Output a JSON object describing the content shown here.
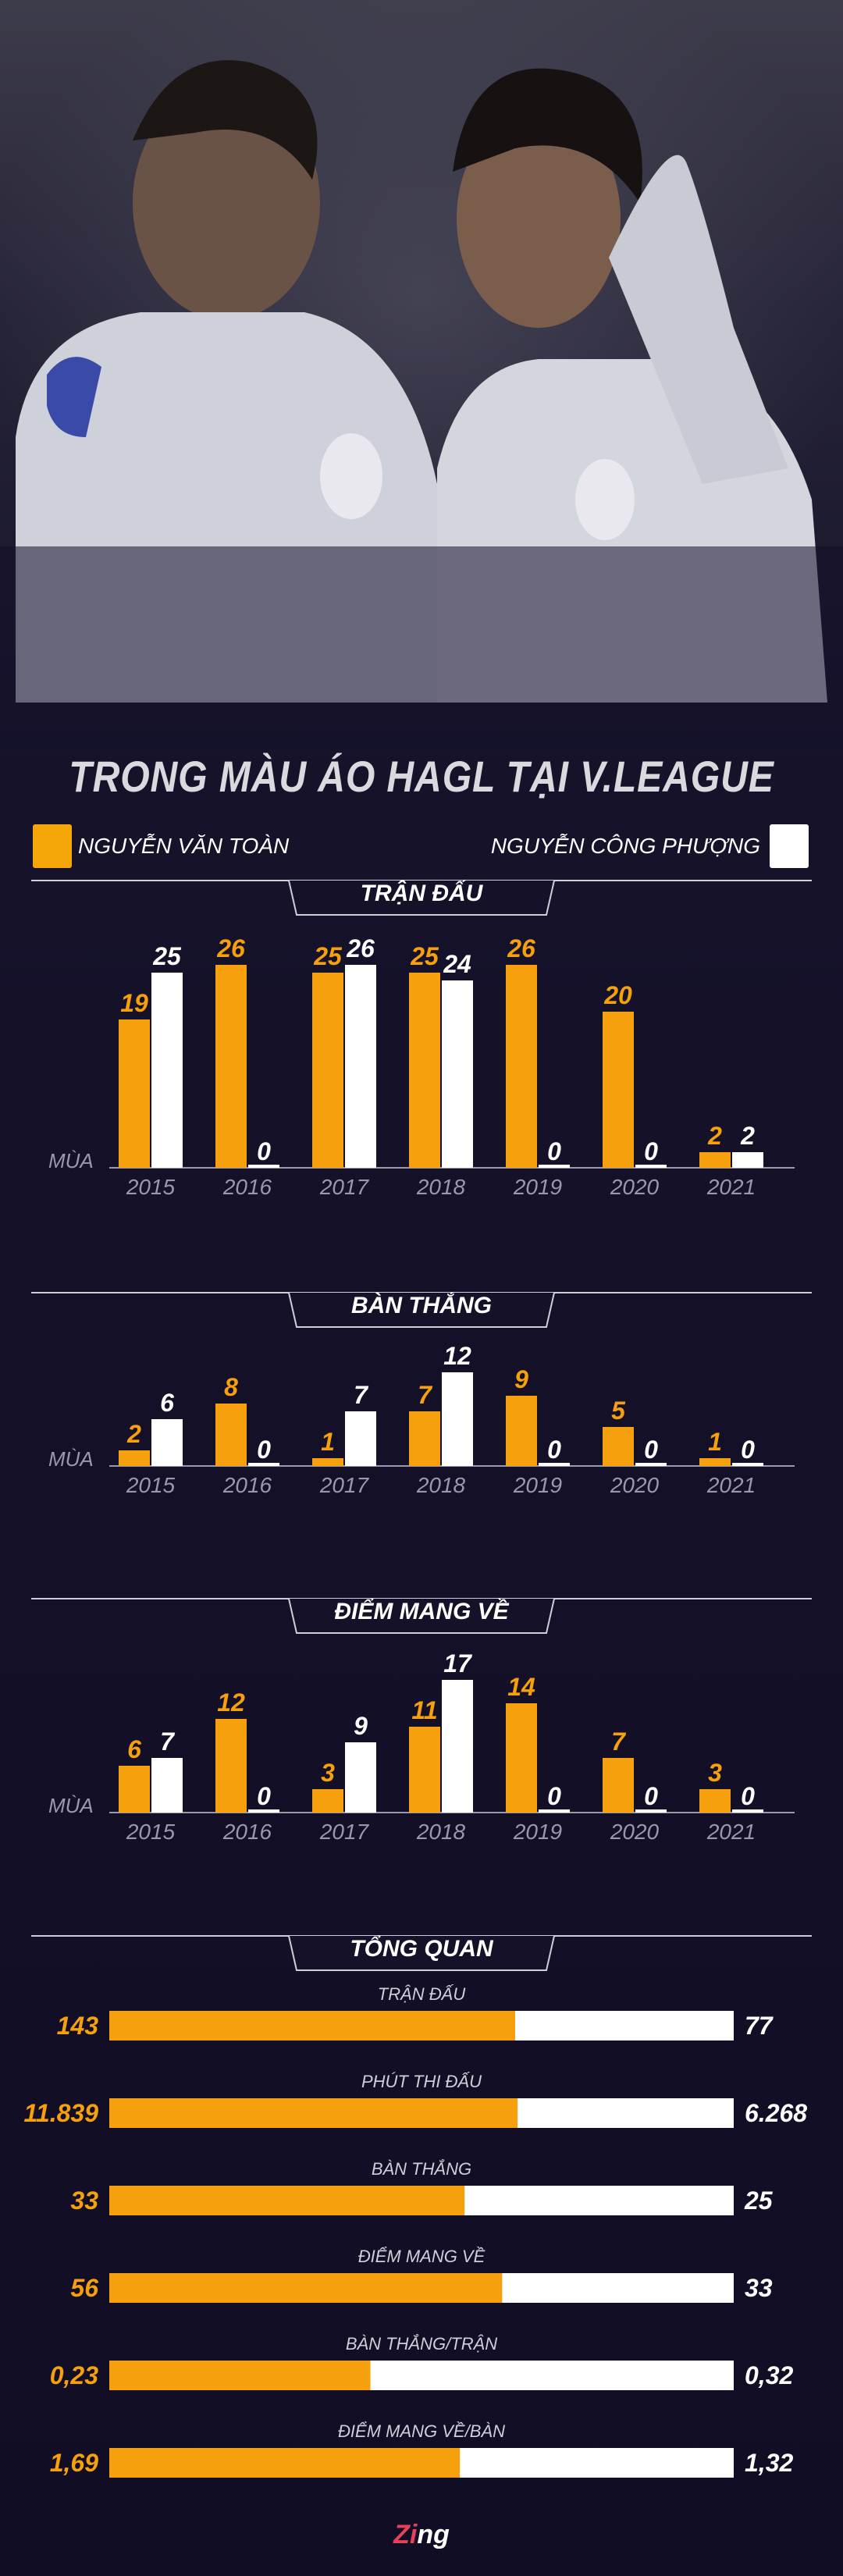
{
  "title": "TRONG MÀU ÁO HAGL TẠI V.LEAGUE",
  "players": {
    "left": {
      "name": "NGUYỄN VĂN TOÀN",
      "color": "#f5a00c"
    },
    "right": {
      "name": "NGUYỄN CÔNG PHƯỢNG",
      "color": "#ffffff"
    }
  },
  "axis_label": "MÙA",
  "chart_data": [
    {
      "type": "bar",
      "title": "TRẬN ĐẤU",
      "categories": [
        "2015",
        "2016",
        "2017",
        "2018",
        "2019",
        "2020",
        "2021"
      ],
      "series": [
        {
          "name": "NGUYỄN VĂN TOÀN",
          "values": [
            19,
            26,
            25,
            25,
            26,
            20,
            2
          ]
        },
        {
          "name": "NGUYỄN CÔNG PHƯỢNG",
          "values": [
            25,
            0,
            26,
            24,
            0,
            0,
            2
          ]
        }
      ],
      "ylim": [
        0,
        26
      ]
    },
    {
      "type": "bar",
      "title": "BÀN THẮNG",
      "categories": [
        "2015",
        "2016",
        "2017",
        "2018",
        "2019",
        "2020",
        "2021"
      ],
      "series": [
        {
          "name": "NGUYỄN VĂN TOÀN",
          "values": [
            2,
            8,
            1,
            7,
            9,
            5,
            1
          ]
        },
        {
          "name": "NGUYỄN CÔNG PHƯỢNG",
          "values": [
            6,
            0,
            7,
            12,
            0,
            0,
            0
          ]
        }
      ],
      "ylim": [
        0,
        12
      ]
    },
    {
      "type": "bar",
      "title": "ĐIỂM MANG VỀ",
      "categories": [
        "2015",
        "2016",
        "2017",
        "2018",
        "2019",
        "2020",
        "2021"
      ],
      "series": [
        {
          "name": "NGUYỄN VĂN TOÀN",
          "values": [
            6,
            12,
            3,
            11,
            14,
            7,
            3
          ]
        },
        {
          "name": "NGUYỄN CÔNG PHƯỢNG",
          "values": [
            7,
            0,
            9,
            17,
            0,
            0,
            0
          ]
        }
      ],
      "ylim": [
        0,
        17
      ]
    },
    {
      "type": "bar",
      "orientation": "horizontal-stacked",
      "title": "TỔNG QUAN",
      "rows": [
        {
          "label": "TRẬN ĐẤU",
          "left": 143,
          "right": 77,
          "left_text": "143",
          "right_text": "77"
        },
        {
          "label": "PHÚT THI ĐẤU",
          "left": 11839,
          "right": 6268,
          "left_text": "11.839",
          "right_text": "6.268"
        },
        {
          "label": "BÀN THẮNG",
          "left": 33,
          "right": 25,
          "left_text": "33",
          "right_text": "25"
        },
        {
          "label": "ĐIỂM MANG VỀ",
          "left": 56,
          "right": 33,
          "left_text": "56",
          "right_text": "33"
        },
        {
          "label": "BÀN THẮNG/TRẬN",
          "left": 0.23,
          "right": 0.32,
          "left_text": "0,23",
          "right_text": "0,32"
        },
        {
          "label": "ĐIỂM MANG VỀ/BÀN",
          "left": 1.69,
          "right": 1.32,
          "left_text": "1,69",
          "right_text": "1,32"
        }
      ]
    }
  ],
  "logo": {
    "text_1": "Zi",
    "text_2": "ng"
  }
}
